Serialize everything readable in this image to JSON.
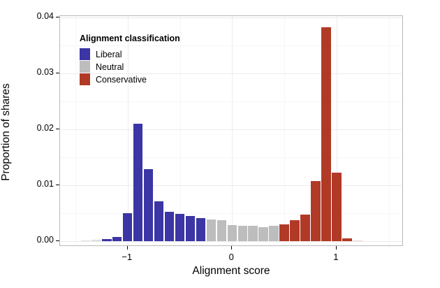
{
  "colors": {
    "liberal": "#3B35A5",
    "neutral": "#BDBDBD",
    "conservative": "#B13A27",
    "faded_light": "#E1E1E1",
    "faded_light2": "#DEDEDE",
    "faded_red": "#EBD6D0",
    "grid_major": "#ececec",
    "grid_minor": "#f6f6f6",
    "panel_border": "#b9b9b9",
    "text": "#000000"
  },
  "chart_data": {
    "type": "bar",
    "title": "",
    "xlabel": "Alignment score",
    "ylabel": "Proportion of shares",
    "xlim": [
      -1.645,
      1.643
    ],
    "ylim": [
      0,
      0.0402
    ],
    "bin_width": 0.1,
    "grid": "on",
    "x_ticks": [
      {
        "value": -1,
        "label": "−1"
      },
      {
        "value": 0,
        "label": "0"
      },
      {
        "value": 1,
        "label": "1"
      }
    ],
    "y_ticks": [
      {
        "value": 0.0,
        "label": "0.00"
      },
      {
        "value": 0.01,
        "label": "0.01"
      },
      {
        "value": 0.02,
        "label": "0.02"
      },
      {
        "value": 0.03,
        "label": "0.03"
      },
      {
        "value": 0.04,
        "label": "0.04"
      }
    ],
    "x_minor_gridlines": [
      -1.5,
      -0.5,
      0.5,
      1.5
    ],
    "y_minor_gridlines": [
      0.005,
      0.015,
      0.025,
      0.035
    ],
    "bars": [
      {
        "score": -1.4,
        "value": 0.0001,
        "class": "liberal",
        "color_override": "faded_light"
      },
      {
        "score": -1.3,
        "value": 0.0002,
        "class": "liberal",
        "color_override": "faded_light2"
      },
      {
        "score": -1.2,
        "value": 0.0004,
        "class": "liberal"
      },
      {
        "score": -1.1,
        "value": 0.0008,
        "class": "liberal"
      },
      {
        "score": -1.0,
        "value": 0.005,
        "class": "liberal"
      },
      {
        "score": -0.9,
        "value": 0.021,
        "class": "liberal"
      },
      {
        "score": -0.8,
        "value": 0.0129,
        "class": "liberal"
      },
      {
        "score": -0.7,
        "value": 0.0071,
        "class": "liberal"
      },
      {
        "score": -0.6,
        "value": 0.0053,
        "class": "liberal"
      },
      {
        "score": -0.5,
        "value": 0.0049,
        "class": "liberal"
      },
      {
        "score": -0.4,
        "value": 0.0045,
        "class": "liberal"
      },
      {
        "score": -0.3,
        "value": 0.0041,
        "class": "liberal"
      },
      {
        "score": -0.2,
        "value": 0.0039,
        "class": "neutral"
      },
      {
        "score": -0.1,
        "value": 0.0037,
        "class": "neutral"
      },
      {
        "score": 0.0,
        "value": 0.0029,
        "class": "neutral"
      },
      {
        "score": 0.1,
        "value": 0.0028,
        "class": "neutral"
      },
      {
        "score": 0.2,
        "value": 0.0027,
        "class": "neutral"
      },
      {
        "score": 0.3,
        "value": 0.0025,
        "class": "neutral"
      },
      {
        "score": 0.4,
        "value": 0.0028,
        "class": "neutral"
      },
      {
        "score": 0.5,
        "value": 0.003,
        "class": "conservative"
      },
      {
        "score": 0.6,
        "value": 0.0037,
        "class": "conservative"
      },
      {
        "score": 0.7,
        "value": 0.0047,
        "class": "conservative"
      },
      {
        "score": 0.8,
        "value": 0.0107,
        "class": "conservative"
      },
      {
        "score": 0.9,
        "value": 0.0383,
        "class": "conservative"
      },
      {
        "score": 1.0,
        "value": 0.0123,
        "class": "conservative"
      },
      {
        "score": 1.1,
        "value": 0.0005,
        "class": "conservative"
      },
      {
        "score": 1.2,
        "value": 0.0001,
        "class": "conservative",
        "color_override": "faded_red"
      }
    ],
    "legend": {
      "title": "Alignment classification",
      "position": "top-left",
      "items": [
        {
          "label": "Liberal",
          "class": "liberal"
        },
        {
          "label": "Neutral",
          "class": "neutral"
        },
        {
          "label": "Conservative",
          "class": "conservative"
        }
      ]
    }
  }
}
